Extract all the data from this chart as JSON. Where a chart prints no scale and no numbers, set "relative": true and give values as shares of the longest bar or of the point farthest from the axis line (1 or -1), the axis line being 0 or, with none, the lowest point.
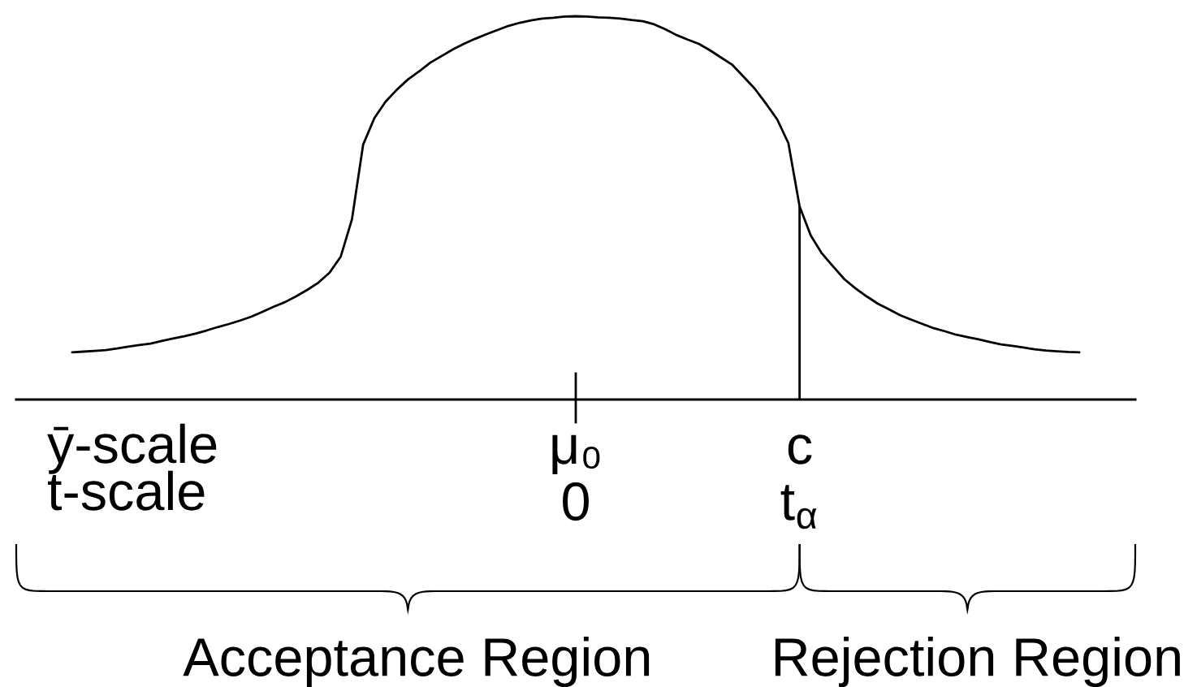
{
  "chart_data": {
    "type": "line",
    "relative": true,
    "categories": [
      null,
      null,
      null,
      null,
      null,
      null,
      null,
      null,
      null,
      null,
      null,
      null,
      null,
      null,
      null,
      null,
      null,
      null,
      null,
      null,
      null,
      null,
      null,
      null,
      null,
      null,
      null,
      null,
      null,
      null,
      null,
      null,
      null,
      null,
      null,
      null,
      null,
      null,
      null,
      null,
      null,
      null,
      null,
      null,
      null,
      null,
      null,
      null,
      null,
      null,
      "μ₀\n0",
      null,
      null,
      null,
      null,
      null,
      null,
      null,
      null,
      null,
      null,
      null,
      null,
      null,
      null,
      null,
      null,
      null,
      null,
      null,
      "c\nt$_{α}$",
      null,
      null,
      null,
      null,
      null,
      null,
      null,
      null,
      null,
      null,
      null,
      null,
      null,
      null,
      null,
      null,
      null,
      null,
      null,
      null,
      null,
      null,
      null,
      null,
      null,
      null,
      null,
      null,
      null,
      null
    ],
    "series": [
      {
        "color": "#000000",
        "values": [
          null,
          null,
          null,
          null,
          null,
          0.123,
          0.125,
          0.127,
          0.129,
          0.133,
          0.138,
          0.142,
          0.146,
          0.153,
          0.159,
          0.165,
          0.172,
          0.18,
          0.189,
          0.197,
          0.206,
          0.216,
          0.229,
          0.242,
          0.254,
          0.269,
          0.286,
          0.305,
          0.331,
          0.373,
          0.47,
          0.665,
          0.734,
          0.777,
          0.808,
          0.835,
          0.856,
          0.879,
          0.896,
          0.913,
          0.928,
          0.941,
          0.953,
          0.964,
          0.975,
          0.983,
          0.989,
          0.994,
          0.996,
          0.999,
          1,
          0.999,
          0.997,
          0.996,
          0.994,
          0.99,
          0.987,
          0.979,
          0.966,
          0.951,
          0.939,
          0.928,
          0.911,
          0.892,
          0.873,
          0.842,
          0.811,
          0.772,
          0.731,
          0.669,
          0.504,
          0.428,
          0.381,
          0.347,
          0.314,
          0.29,
          0.269,
          0.25,
          0.235,
          0.22,
          0.208,
          0.197,
          0.186,
          0.178,
          0.169,
          0.163,
          0.157,
          0.15,
          0.144,
          0.14,
          0.136,
          0.131,
          0.128,
          0.126,
          0.124,
          0.123,
          null,
          null,
          null,
          null,
          null
        ]
      }
    ],
    "ref_lines": [
      {
        "axis": "x",
        "value": "c\nt$_{α}$"
      }
    ],
    "annotations": [
      "ȳ-scale",
      "t-scale",
      "Acceptance Region",
      "Rejection Region"
    ]
  }
}
